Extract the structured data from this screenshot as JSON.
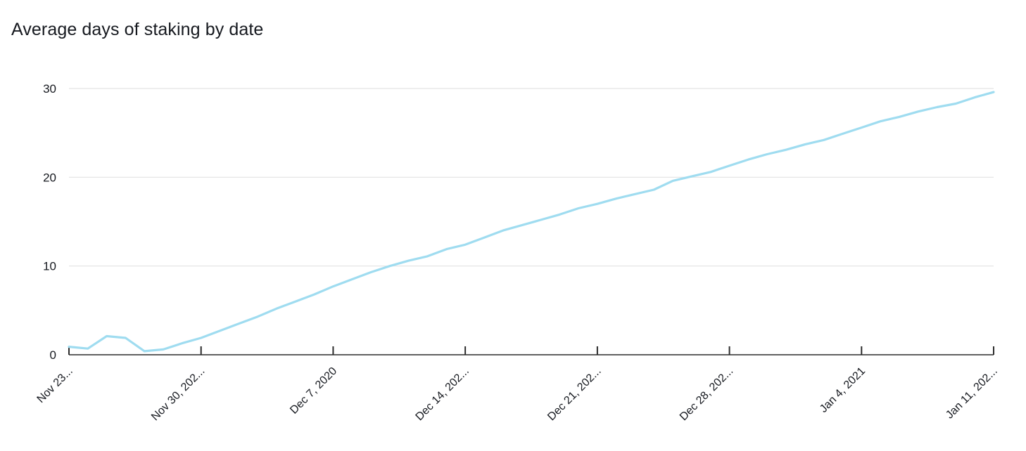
{
  "chart_data": {
    "type": "line",
    "title": "Average days of staking by date",
    "xlabel": "",
    "ylabel": "",
    "ylim": [
      0,
      30
    ],
    "yticks": [
      "0",
      "10",
      "20",
      "30"
    ],
    "xticks": [
      "Nov 23...",
      "Nov 30, 202...",
      "Dec 7, 2020",
      "Dec 14, 202...",
      "Dec 21, 202...",
      "Dec 28, 202...",
      "Jan 4, 2021",
      "Jan 11, 202..."
    ],
    "grid": true,
    "line_color": "#9fdcf0",
    "series": [
      {
        "name": "",
        "x": [
          "2020-11-23",
          "2020-11-24",
          "2020-11-25",
          "2020-11-26",
          "2020-11-27",
          "2020-11-28",
          "2020-11-29",
          "2020-11-30",
          "2020-12-01",
          "2020-12-02",
          "2020-12-03",
          "2020-12-04",
          "2020-12-05",
          "2020-12-06",
          "2020-12-07",
          "2020-12-08",
          "2020-12-09",
          "2020-12-10",
          "2020-12-11",
          "2020-12-12",
          "2020-12-13",
          "2020-12-14",
          "2020-12-15",
          "2020-12-16",
          "2020-12-17",
          "2020-12-18",
          "2020-12-19",
          "2020-12-20",
          "2020-12-21",
          "2020-12-22",
          "2020-12-23",
          "2020-12-24",
          "2020-12-25",
          "2020-12-26",
          "2020-12-27",
          "2020-12-28",
          "2020-12-29",
          "2020-12-30",
          "2020-12-31",
          "2021-01-01",
          "2021-01-02",
          "2021-01-03",
          "2021-01-04",
          "2021-01-05",
          "2021-01-06",
          "2021-01-07",
          "2021-01-08",
          "2021-01-09",
          "2021-01-10",
          "2021-01-11"
        ],
        "values": [
          0.9,
          0.7,
          2.1,
          1.9,
          0.4,
          0.6,
          1.3,
          1.9,
          2.7,
          3.5,
          4.3,
          5.2,
          6.0,
          6.8,
          7.7,
          8.5,
          9.3,
          10.0,
          10.6,
          11.1,
          11.9,
          12.4,
          13.2,
          14.0,
          14.6,
          15.2,
          15.8,
          16.5,
          17.0,
          17.6,
          18.1,
          18.6,
          19.6,
          20.1,
          20.6,
          21.3,
          22.0,
          22.6,
          23.1,
          23.7,
          24.2,
          24.9,
          25.6,
          26.3,
          26.8,
          27.4,
          27.9,
          28.3,
          29.0,
          29.6
        ]
      }
    ]
  }
}
